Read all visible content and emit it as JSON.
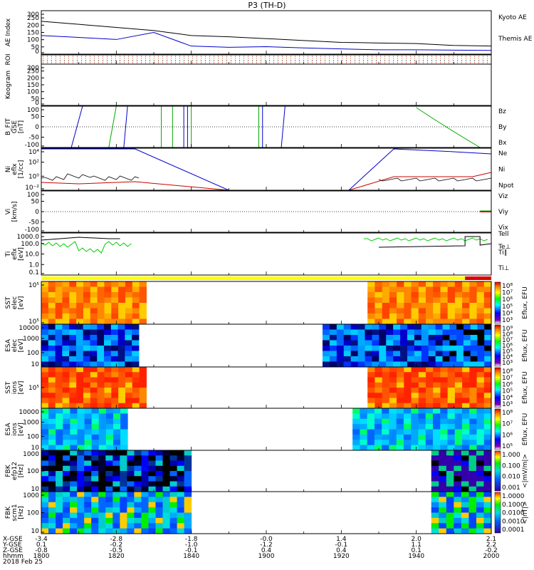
{
  "title": "P3 (TH-D)",
  "date_label": "2018 Feb 25",
  "footer": {
    "row_labels": [
      "X-GSE",
      "Y-GSE",
      "Z-GSE",
      "hhmm"
    ],
    "x_gse": [
      "-3.4",
      "-2.8",
      "-1.8",
      "-0.0",
      "1.4",
      "2.0",
      "2.1"
    ],
    "y_gse": [
      "0.1",
      "-0.2",
      "-1.0",
      "-1.2",
      "-0.1",
      "1.1",
      "2.2"
    ],
    "z_gse": [
      "-0.8",
      "-0.5",
      "-0.1",
      "0.4",
      "0.4",
      "0.1",
      "-0.2"
    ],
    "hhmm": [
      "1800",
      "1820",
      "1840",
      "1900",
      "1920",
      "1940",
      "2000"
    ]
  },
  "chart_data": [
    {
      "id": "ae",
      "type": "line",
      "ylabel": "AE Index",
      "ylim": [
        0,
        350
      ],
      "yticks": [
        "0",
        "50",
        "100",
        "150",
        "200",
        "250",
        "300"
      ],
      "legend": [
        "Kyoto AE",
        "Themis AE"
      ],
      "colors": [
        "#0000cc",
        "#000000"
      ],
      "x_time": [
        "1800",
        "1810",
        "1820",
        "1830",
        "1840",
        "1850",
        "1900",
        "1910",
        "1920",
        "1930",
        "1940",
        "1950",
        "2000"
      ],
      "series": [
        {
          "name": "Kyoto AE",
          "values": [
            150,
            135,
            118,
            175,
            65,
            55,
            60,
            50,
            42,
            35,
            35,
            32,
            30
          ]
        },
        {
          "name": "Themis AE",
          "values": [
            265,
            240,
            215,
            190,
            150,
            140,
            125,
            110,
            95,
            90,
            85,
            70,
            65
          ]
        }
      ]
    },
    {
      "id": "roi",
      "type": "heatmap",
      "ylabel": "ROI"
    },
    {
      "id": "keogram",
      "type": "line",
      "ylabel": "Keogram",
      "ylim": [
        0,
        300
      ],
      "yticks": [
        "0",
        "50",
        "100",
        "150",
        "200",
        "250",
        "300"
      ]
    },
    {
      "id": "bfit",
      "type": "line",
      "ylabel": "B_FIT",
      "unit1": "GSE",
      "unit2": "[nT]",
      "ylim": [
        -100,
        100
      ],
      "yticks": [
        "-100",
        "-50",
        "0",
        "50",
        "100"
      ],
      "legend": [
        "Bz",
        "By",
        "Bx"
      ],
      "colors": [
        "#cc0000",
        "#00aa00",
        "#0000cc"
      ]
    },
    {
      "id": "ni",
      "type": "line",
      "ylabel": "Ni",
      "unit1": "eflx",
      "unit2": "[1/cc]",
      "yticks": [
        "10⁻²",
        "10⁰",
        "10²",
        "10⁴"
      ],
      "legend": [
        "Ne",
        "Ni",
        "Npot"
      ],
      "colors": [
        "#cc0000",
        "#000000",
        "#0000cc"
      ]
    },
    {
      "id": "vi",
      "type": "line",
      "ylabel": "Vi",
      "unit1": "",
      "unit2": "[km/s]",
      "ylim": [
        -100,
        100
      ],
      "yticks": [
        "-100",
        "-50",
        "0",
        "50",
        "100"
      ],
      "legend": [
        "Viz",
        "Viy",
        "Vix"
      ],
      "colors": [
        "#cc0000",
        "#00aa00",
        "#0000cc"
      ]
    },
    {
      "id": "ti",
      "type": "line",
      "ylabel": "Ti",
      "unit1": "eflx",
      "unit2": "[eV]",
      "yticks": [
        "0.1",
        "1.0",
        "10.0",
        "100.0",
        "1000.0"
      ],
      "legend": [
        "Tell",
        "Te⊥",
        "Ti∥",
        "Ti⊥"
      ],
      "colors": [
        "#000000",
        "#cc0000",
        "#00aa00",
        "#0000cc"
      ]
    },
    {
      "id": "sst_e",
      "type": "heatmap",
      "ylabel": "SST",
      "unit1": "elec",
      "unit2": "[eV]",
      "yticks": [
        "10⁵",
        "10⁵"
      ],
      "cbar_label": "Eflux, EFU",
      "cbar_ticks": [
        "10⁸",
        "10⁷",
        "10⁶",
        "10⁵",
        "10⁴",
        "10³"
      ]
    },
    {
      "id": "esa_e",
      "type": "heatmap",
      "ylabel": "ESA",
      "unit1": "elec",
      "unit2": "[eV]",
      "yticks": [
        "10",
        "100",
        "1000",
        "10000"
      ],
      "cbar_label": "Eflux, EFU",
      "cbar_ticks": [
        "10⁹",
        "10⁸",
        "10⁷",
        "10⁶",
        "10⁵",
        "10⁴",
        "10³"
      ]
    },
    {
      "id": "sst_i",
      "type": "heatmap",
      "ylabel": "SST",
      "unit1": "ions",
      "unit2": "[eV]",
      "yticks": [
        "10⁵"
      ],
      "cbar_label": "Eflux, EFU",
      "cbar_ticks": [
        "10⁸",
        "10⁷",
        "10⁶",
        "10⁵",
        "10⁴",
        "10³"
      ]
    },
    {
      "id": "esa_i",
      "type": "heatmap",
      "ylabel": "ESA",
      "unit1": "ions",
      "unit2": "[eV]",
      "yticks": [
        "10",
        "100",
        "1000",
        "10000"
      ],
      "cbar_label": "Eflux, EFU",
      "cbar_ticks": [
        "10⁸",
        "10⁷",
        "10⁶",
        "10⁵"
      ]
    },
    {
      "id": "fbk_e",
      "type": "heatmap",
      "ylabel": "FBK",
      "unit1": "efp12",
      "unit2": "[Hz]",
      "yticks": [
        "10",
        "100",
        "1000"
      ],
      "cbar_label": "<|mV/m|>",
      "cbar_ticks": [
        "1.000",
        "0.100",
        "0.010",
        "0.001"
      ]
    },
    {
      "id": "fbk_b",
      "type": "heatmap",
      "ylabel": "FBK",
      "unit1": "scm1",
      "unit2": "[Hz]",
      "yticks": [
        "10",
        "100",
        "1000"
      ],
      "cbar_label": "<|nT|>",
      "cbar_ticks": [
        "1.0000",
        "0.1000",
        "0.0100",
        "0.0010",
        "0.0001"
      ]
    }
  ]
}
